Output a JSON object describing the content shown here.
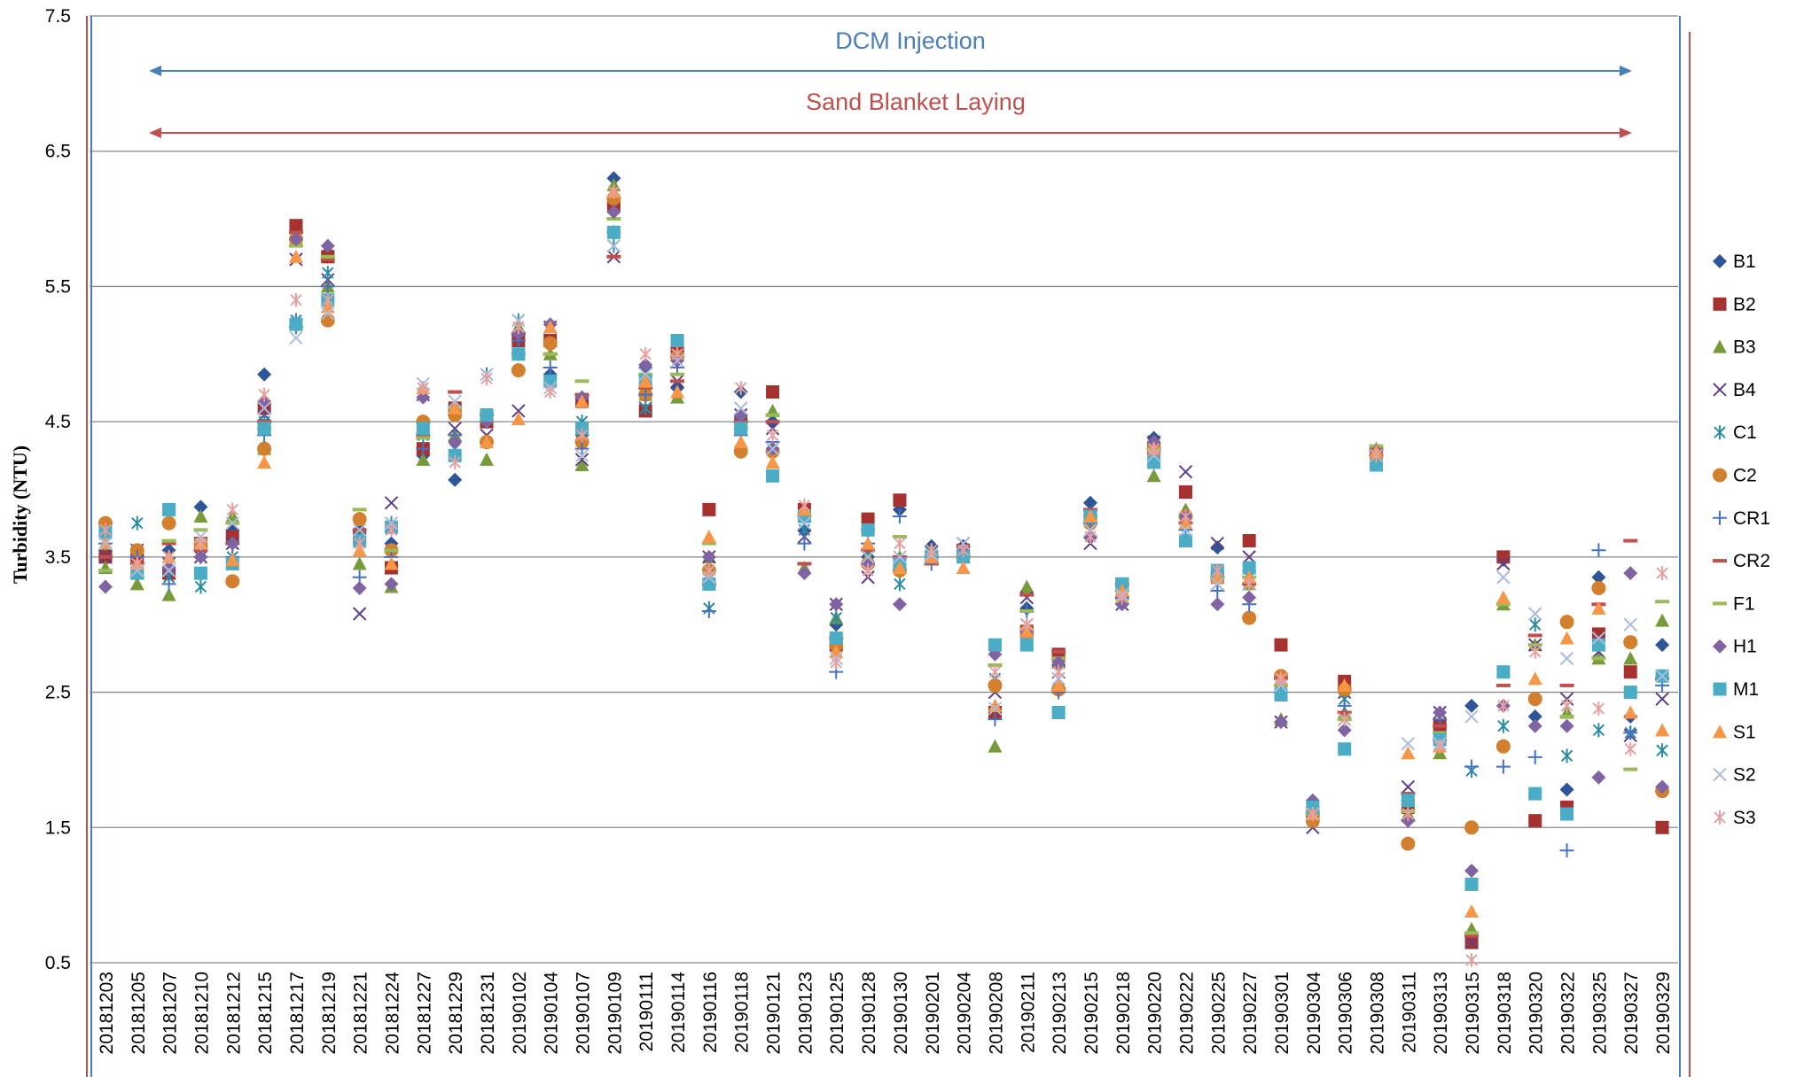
{
  "chart_data": {
    "type": "scatter",
    "y_label": "Turbidity (NTU)",
    "annotations": [
      {
        "text": "DCM Injection",
        "color": "#4a7ebb"
      },
      {
        "text": "Sand Blanket Laying",
        "color": "#c0504d"
      }
    ],
    "categories": [
      "20181203",
      "20181205",
      "20181207",
      "20181210",
      "20181212",
      "20181215",
      "20181217",
      "20181219",
      "20181221",
      "20181224",
      "20181227",
      "20181229",
      "20181231",
      "20190102",
      "20190104",
      "20190107",
      "20190109",
      "20190111",
      "20190114",
      "20190116",
      "20190118",
      "20190121",
      "20190123",
      "20190125",
      "20190128",
      "20190130",
      "20190201",
      "20190204",
      "20190208",
      "20190211",
      "20190213",
      "20190215",
      "20190218",
      "20190220",
      "20190222",
      "20190225",
      "20190227",
      "20190301",
      "20190304",
      "20190306",
      "20190308",
      "20190311",
      "20190313",
      "20190315",
      "20190318",
      "20190320",
      "20190322",
      "20190325",
      "20190327",
      "20190329"
    ],
    "ylim": [
      0.5,
      7.5
    ],
    "yticks": [
      0.5,
      1.5,
      2.5,
      3.5,
      4.5,
      5.5,
      6.5,
      7.5
    ],
    "grid": true,
    "legend": "right",
    "series": [
      {
        "name": "B1",
        "color": "#2e5597",
        "marker": "diamond",
        "values": [
          3.55,
          3.5,
          3.55,
          3.87,
          3.7,
          4.85,
          5.85,
          5.75,
          3.7,
          3.6,
          4.25,
          4.07,
          4.5,
          5.0,
          4.85,
          4.4,
          6.3,
          4.9,
          4.75,
          3.4,
          4.72,
          4.5,
          3.7,
          3.0,
          3.5,
          3.85,
          3.58,
          3.58,
          2.55,
          3.12,
          2.7,
          3.9,
          3.2,
          4.38,
          3.8,
          3.57,
          3.4,
          2.6,
          1.65,
          2.5,
          4.25,
          1.7,
          2.15,
          2.4,
          3.48,
          2.32,
          1.78,
          3.35,
          2.32,
          2.85
        ]
      },
      {
        "name": "B2",
        "color": "#a5322e",
        "marker": "square",
        "values": [
          3.5,
          3.5,
          3.38,
          3.6,
          3.65,
          4.6,
          5.95,
          5.72,
          3.65,
          3.42,
          4.3,
          4.6,
          4.5,
          5.1,
          5.1,
          4.65,
          6.1,
          4.58,
          5.05,
          3.85,
          4.5,
          4.72,
          3.85,
          2.85,
          3.78,
          3.92,
          3.5,
          3.55,
          2.35,
          2.95,
          2.78,
          3.78,
          3.3,
          4.3,
          3.98,
          3.35,
          3.62,
          2.85,
          1.6,
          2.58,
          4.25,
          1.65,
          2.25,
          0.65,
          3.5,
          1.55,
          1.65,
          2.93,
          2.65,
          1.5
        ]
      },
      {
        "name": "B3",
        "color": "#779a3a",
        "marker": "triangle",
        "values": [
          3.42,
          3.3,
          3.22,
          3.8,
          3.8,
          4.3,
          5.85,
          5.5,
          3.45,
          3.28,
          4.22,
          4.4,
          4.22,
          5.2,
          5.0,
          4.18,
          6.25,
          4.7,
          4.68,
          3.5,
          4.5,
          4.58,
          3.42,
          3.05,
          3.5,
          3.5,
          3.55,
          3.5,
          2.1,
          3.28,
          2.72,
          3.82,
          3.2,
          4.1,
          3.85,
          3.4,
          3.3,
          2.3,
          1.6,
          2.35,
          4.3,
          1.6,
          2.05,
          0.75,
          3.15,
          2.85,
          2.35,
          2.75,
          2.75,
          3.03
        ]
      },
      {
        "name": "B4",
        "color": "#5d3f86",
        "marker": "x",
        "values": [
          3.5,
          3.55,
          3.45,
          3.5,
          3.6,
          4.55,
          5.7,
          5.55,
          3.08,
          3.9,
          4.7,
          4.45,
          4.4,
          4.58,
          5.2,
          4.22,
          5.72,
          4.6,
          4.8,
          3.5,
          4.55,
          4.45,
          3.65,
          3.15,
          3.35,
          3.45,
          3.5,
          3.6,
          2.5,
          3.2,
          2.65,
          3.6,
          3.15,
          4.35,
          4.13,
          3.6,
          3.5,
          2.28,
          1.5,
          2.5,
          4.25,
          1.8,
          2.35,
          0.65,
          3.45,
          2.85,
          2.45,
          2.8,
          2.18,
          2.45
        ]
      },
      {
        "name": "C1",
        "color": "#2b8ba5",
        "marker": "asterisk",
        "values": [
          3.6,
          3.75,
          3.35,
          3.28,
          3.5,
          4.5,
          5.25,
          5.6,
          3.65,
          3.75,
          4.4,
          4.3,
          4.85,
          5.25,
          4.8,
          4.5,
          5.8,
          4.6,
          5.0,
          3.12,
          4.5,
          4.3,
          3.7,
          3.05,
          3.5,
          3.3,
          3.55,
          3.5,
          2.6,
          3.0,
          2.6,
          3.8,
          3.2,
          4.25,
          3.75,
          3.3,
          3.35,
          2.5,
          1.55,
          2.45,
          4.25,
          1.7,
          2.1,
          1.92,
          2.25,
          3.0,
          2.03,
          2.22,
          2.2,
          2.07
        ]
      },
      {
        "name": "C2",
        "color": "#d27f2e",
        "marker": "circle",
        "values": [
          3.75,
          3.55,
          3.75,
          3.6,
          3.32,
          4.3,
          5.85,
          5.25,
          3.78,
          3.55,
          4.5,
          4.55,
          4.35,
          4.88,
          5.08,
          4.35,
          6.15,
          4.7,
          4.98,
          3.4,
          4.28,
          4.28,
          3.8,
          2.85,
          3.45,
          3.4,
          3.5,
          3.5,
          2.55,
          2.95,
          2.52,
          3.75,
          3.2,
          4.3,
          3.8,
          3.35,
          3.05,
          2.62,
          1.55,
          2.52,
          4.25,
          1.38,
          2.15,
          1.5,
          2.1,
          2.45,
          3.02,
          3.27,
          2.87,
          1.77
        ]
      },
      {
        "name": "CR1",
        "color": "#4472c4",
        "marker": "plus",
        "values": [
          3.6,
          3.5,
          3.3,
          3.5,
          3.5,
          4.4,
          5.2,
          5.5,
          3.35,
          3.5,
          4.3,
          4.4,
          4.5,
          5.1,
          4.9,
          4.3,
          5.9,
          4.7,
          4.9,
          3.1,
          4.4,
          4.35,
          3.6,
          2.65,
          3.6,
          3.8,
          3.45,
          3.5,
          2.3,
          3.1,
          2.5,
          3.75,
          3.2,
          4.3,
          3.7,
          3.25,
          3.15,
          2.5,
          1.6,
          2.4,
          4.25,
          1.55,
          2.3,
          1.95,
          1.95,
          2.02,
          1.33,
          3.55,
          2.2,
          2.55
        ]
      },
      {
        "name": "CR2",
        "color": "#c0504d",
        "marker": "dash",
        "values": [
          3.5,
          3.45,
          3.6,
          3.55,
          3.6,
          4.5,
          5.9,
          5.7,
          3.7,
          3.55,
          4.4,
          4.72,
          4.55,
          5.15,
          5.0,
          4.7,
          5.72,
          4.75,
          4.8,
          3.3,
          4.5,
          4.5,
          3.45,
          2.9,
          3.55,
          3.5,
          3.45,
          3.5,
          2.7,
          3.22,
          2.8,
          3.85,
          3.3,
          4.3,
          3.75,
          3.35,
          3.3,
          2.6,
          1.6,
          2.35,
          4.3,
          1.75,
          2.25,
          0.7,
          2.55,
          2.92,
          2.55,
          3.15,
          3.62,
          2.6
        ]
      },
      {
        "name": "F1",
        "color": "#9bbb59",
        "marker": "dash",
        "values": [
          3.4,
          3.35,
          3.62,
          3.7,
          3.75,
          4.45,
          5.8,
          5.72,
          3.85,
          3.55,
          4.38,
          4.6,
          4.5,
          5.0,
          5.0,
          4.8,
          6.0,
          4.85,
          4.85,
          3.6,
          4.45,
          4.55,
          3.8,
          2.9,
          3.7,
          3.65,
          3.5,
          3.5,
          2.7,
          3.1,
          2.75,
          3.8,
          3.25,
          4.3,
          3.8,
          3.35,
          3.35,
          2.55,
          1.6,
          2.3,
          4.32,
          1.62,
          2.2,
          0.72,
          3.15,
          2.85,
          2.32,
          2.75,
          1.93,
          3.17
        ]
      },
      {
        "name": "H1",
        "color": "#8064a2",
        "marker": "diamond",
        "values": [
          3.28,
          3.4,
          3.42,
          3.5,
          3.6,
          4.65,
          5.85,
          5.8,
          3.27,
          3.3,
          4.68,
          4.35,
          4.5,
          5.15,
          5.22,
          4.68,
          6.05,
          4.92,
          4.95,
          3.5,
          4.55,
          4.3,
          3.38,
          3.15,
          3.45,
          3.15,
          3.5,
          3.55,
          2.78,
          2.95,
          2.72,
          3.65,
          3.15,
          4.35,
          3.8,
          3.15,
          3.2,
          2.28,
          1.7,
          2.22,
          4.28,
          1.55,
          2.35,
          1.18,
          2.4,
          2.25,
          2.25,
          1.87,
          3.38,
          1.8
        ]
      },
      {
        "name": "M1",
        "color": "#4bacc6",
        "marker": "square",
        "values": [
          3.68,
          3.38,
          3.85,
          3.38,
          3.45,
          4.45,
          5.22,
          5.4,
          3.62,
          3.72,
          4.45,
          4.25,
          4.55,
          5.0,
          4.8,
          4.45,
          5.9,
          4.8,
          5.1,
          3.3,
          4.45,
          4.1,
          3.8,
          2.9,
          3.7,
          3.45,
          3.5,
          3.5,
          2.85,
          2.85,
          2.35,
          3.8,
          3.3,
          4.2,
          3.62,
          3.4,
          3.42,
          2.48,
          1.65,
          2.08,
          4.18,
          1.7,
          2.15,
          1.08,
          2.65,
          1.75,
          1.6,
          2.85,
          2.5,
          2.62
        ]
      },
      {
        "name": "S1",
        "color": "#f79646",
        "marker": "triangle",
        "values": [
          3.6,
          3.45,
          3.5,
          3.6,
          3.48,
          4.2,
          5.72,
          5.35,
          3.55,
          3.45,
          4.75,
          4.6,
          4.35,
          4.52,
          5.2,
          4.65,
          6.2,
          4.8,
          4.72,
          3.65,
          4.35,
          4.2,
          3.85,
          2.8,
          3.6,
          3.42,
          3.5,
          3.42,
          2.4,
          2.95,
          2.55,
          3.8,
          3.25,
          4.3,
          3.75,
          3.35,
          3.35,
          2.6,
          1.6,
          2.55,
          4.28,
          2.05,
          2.1,
          0.88,
          3.2,
          2.6,
          2.9,
          3.12,
          2.35,
          2.22
        ]
      },
      {
        "name": "S2",
        "color": "#aabbdd",
        "marker": "x",
        "values": [
          3.6,
          3.4,
          3.4,
          3.65,
          3.75,
          4.6,
          5.12,
          5.3,
          3.7,
          3.75,
          4.78,
          4.65,
          4.85,
          5.25,
          4.75,
          4.25,
          5.8,
          4.85,
          4.95,
          3.35,
          4.6,
          4.3,
          3.75,
          2.75,
          3.5,
          3.5,
          3.52,
          3.6,
          2.38,
          3.0,
          2.6,
          3.7,
          3.22,
          4.25,
          3.7,
          3.3,
          3.3,
          2.55,
          1.6,
          2.3,
          4.25,
          2.12,
          2.12,
          2.32,
          3.35,
          3.08,
          2.75,
          2.9,
          3.0,
          2.62
        ]
      },
      {
        "name": "S3",
        "color": "#e6a0a0",
        "marker": "asterisk",
        "values": [
          3.7,
          3.45,
          3.5,
          3.6,
          3.85,
          4.7,
          5.4,
          5.4,
          3.6,
          3.7,
          4.75,
          4.2,
          4.82,
          5.2,
          4.72,
          4.4,
          6.2,
          5.0,
          5.0,
          3.4,
          4.75,
          4.4,
          3.88,
          2.72,
          3.4,
          3.6,
          3.55,
          3.55,
          2.65,
          3.0,
          2.65,
          3.65,
          3.2,
          4.3,
          3.8,
          3.4,
          3.3,
          2.6,
          1.6,
          2.3,
          4.25,
          1.6,
          2.1,
          0.52,
          2.4,
          2.8,
          2.4,
          2.38,
          2.08,
          3.38
        ]
      }
    ]
  }
}
